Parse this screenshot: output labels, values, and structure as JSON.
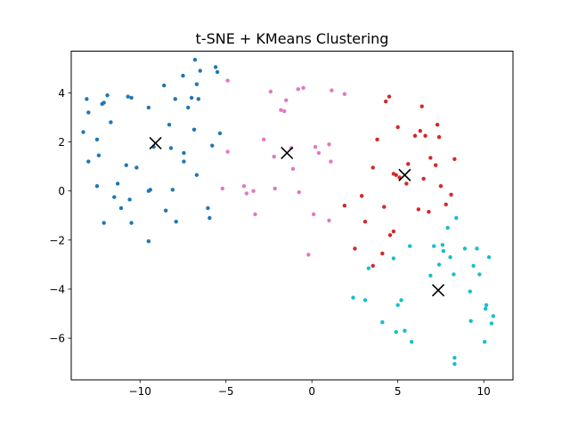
{
  "chart_data": {
    "type": "scatter",
    "title": "t-SNE + KMeans Clustering",
    "xlabel": "",
    "ylabel": "",
    "xlim": [
      -14.0,
      11.7
    ],
    "ylim": [
      -7.7,
      5.7
    ],
    "xticks": [
      -10,
      -5,
      0,
      5,
      10
    ],
    "yticks": [
      -6,
      -4,
      -2,
      0,
      2,
      4
    ],
    "xtick_labels": [
      "−10",
      "−5",
      "0",
      "5",
      "10"
    ],
    "ytick_labels": [
      "−6",
      "−4",
      "−2",
      "0",
      "2",
      "4"
    ],
    "grid": false,
    "legend": false,
    "clusters": [
      {
        "color": "#1f77b4",
        "points": [
          [
            -13.1,
            3.75
          ],
          [
            -13.0,
            3.2
          ],
          [
            -13.3,
            2.4
          ],
          [
            -13.0,
            1.2
          ],
          [
            -12.5,
            2.1
          ],
          [
            -12.4,
            1.45
          ],
          [
            -12.2,
            3.55
          ],
          [
            -12.1,
            3.6
          ],
          [
            -11.9,
            3.9
          ],
          [
            -11.7,
            2.8
          ],
          [
            -11.3,
            0.3
          ],
          [
            -11.1,
            -0.7
          ],
          [
            -10.8,
            1.05
          ],
          [
            -10.7,
            3.85
          ],
          [
            -10.5,
            3.8
          ],
          [
            -10.6,
            -0.35
          ],
          [
            -12.5,
            0.2
          ],
          [
            -11.5,
            -0.25
          ],
          [
            -12.1,
            -1.3
          ],
          [
            -10.5,
            -1.3
          ],
          [
            -10.2,
            0.95
          ],
          [
            -9.5,
            3.4
          ],
          [
            -9.5,
            0.0
          ],
          [
            -9.4,
            0.05
          ],
          [
            -9.5,
            -2.05
          ],
          [
            -9.2,
            1.8
          ],
          [
            -8.6,
            4.3
          ],
          [
            -8.3,
            2.7
          ],
          [
            -8.2,
            1.75
          ],
          [
            -8.1,
            0.05
          ],
          [
            -8.5,
            -0.8
          ],
          [
            -7.9,
            -1.25
          ],
          [
            -7.95,
            3.75
          ],
          [
            -7.5,
            4.7
          ],
          [
            -7.2,
            3.4
          ],
          [
            -7.0,
            3.8
          ],
          [
            -7.45,
            1.55
          ],
          [
            -7.45,
            1.2
          ],
          [
            -6.8,
            5.35
          ],
          [
            -6.7,
            4.35
          ],
          [
            -6.5,
            4.9
          ],
          [
            -6.85,
            2.5
          ],
          [
            -6.7,
            0.65
          ],
          [
            -6.6,
            3.75
          ],
          [
            -6.05,
            -0.7
          ],
          [
            -5.95,
            -1.1
          ],
          [
            -5.8,
            1.85
          ],
          [
            -5.6,
            5.05
          ],
          [
            -5.5,
            4.85
          ],
          [
            -5.35,
            2.35
          ]
        ]
      },
      {
        "color": "#e377c2",
        "points": [
          [
            -4.9,
            4.5
          ],
          [
            -4.9,
            1.6
          ],
          [
            -5.2,
            0.1
          ],
          [
            -3.95,
            0.2
          ],
          [
            -3.8,
            -0.1
          ],
          [
            -3.4,
            0.0
          ],
          [
            -3.3,
            -0.95
          ],
          [
            -2.8,
            2.1
          ],
          [
            -2.4,
            4.05
          ],
          [
            -2.2,
            1.4
          ],
          [
            -2.15,
            0.1
          ],
          [
            -1.8,
            3.3
          ],
          [
            -1.6,
            3.25
          ],
          [
            -1.5,
            3.7
          ],
          [
            -1.2,
            1.75
          ],
          [
            -1.1,
            0.9
          ],
          [
            -0.8,
            4.15
          ],
          [
            -0.75,
            -0.05
          ],
          [
            -0.5,
            4.2
          ],
          [
            -0.2,
            -2.6
          ],
          [
            0.1,
            -0.95
          ],
          [
            0.2,
            1.8
          ],
          [
            0.4,
            1.55
          ],
          [
            1.0,
            1.9
          ],
          [
            1.0,
            -1.2
          ],
          [
            1.1,
            1.2
          ],
          [
            1.15,
            4.1
          ],
          [
            1.9,
            3.95
          ]
        ]
      },
      {
        "color": "#d62728",
        "points": [
          [
            1.9,
            -0.6
          ],
          [
            2.5,
            -2.35
          ],
          [
            2.9,
            -0.2
          ],
          [
            3.1,
            -1.25
          ],
          [
            3.55,
            -3.05
          ],
          [
            3.55,
            0.95
          ],
          [
            3.8,
            2.1
          ],
          [
            4.2,
            -0.65
          ],
          [
            4.3,
            3.65
          ],
          [
            4.5,
            3.85
          ],
          [
            4.55,
            -1.8
          ],
          [
            4.75,
            -1.65
          ],
          [
            4.75,
            0.7
          ],
          [
            4.9,
            0.65
          ],
          [
            5.0,
            2.6
          ],
          [
            5.1,
            0.55
          ],
          [
            5.5,
            0.3
          ],
          [
            5.6,
            1.1
          ],
          [
            6.0,
            2.25
          ],
          [
            6.2,
            -0.75
          ],
          [
            6.3,
            2.45
          ],
          [
            6.4,
            3.45
          ],
          [
            6.6,
            2.25
          ],
          [
            6.5,
            0.5
          ],
          [
            6.8,
            -0.85
          ],
          [
            6.9,
            1.35
          ],
          [
            7.2,
            1.05
          ],
          [
            7.3,
            2.7
          ],
          [
            7.4,
            2.2
          ],
          [
            7.5,
            0.2
          ],
          [
            7.8,
            -0.55
          ],
          [
            8.1,
            -0.15
          ],
          [
            8.3,
            1.3
          ],
          [
            4.1,
            -2.55
          ]
        ]
      },
      {
        "color": "#17becf",
        "points": [
          [
            2.4,
            -4.35
          ],
          [
            3.1,
            -4.45
          ],
          [
            3.3,
            -3.15
          ],
          [
            4.1,
            -5.35
          ],
          [
            4.75,
            -2.75
          ],
          [
            4.9,
            -5.75
          ],
          [
            5.0,
            -4.65
          ],
          [
            5.2,
            -4.45
          ],
          [
            5.4,
            -5.7
          ],
          [
            5.7,
            -2.25
          ],
          [
            5.8,
            -6.15
          ],
          [
            6.9,
            -3.45
          ],
          [
            7.1,
            -2.25
          ],
          [
            7.4,
            -3.0
          ],
          [
            7.6,
            -2.2
          ],
          [
            7.65,
            -2.45
          ],
          [
            7.9,
            -1.5
          ],
          [
            8.05,
            -2.7
          ],
          [
            8.25,
            -3.4
          ],
          [
            8.3,
            -6.8
          ],
          [
            8.3,
            -7.05
          ],
          [
            8.4,
            -1.1
          ],
          [
            8.9,
            -2.35
          ],
          [
            9.2,
            -4.1
          ],
          [
            9.25,
            -5.3
          ],
          [
            9.4,
            -3.05
          ],
          [
            9.6,
            -2.35
          ],
          [
            9.75,
            -3.4
          ],
          [
            10.05,
            -6.15
          ],
          [
            10.1,
            -4.8
          ],
          [
            10.15,
            -4.65
          ],
          [
            10.3,
            -2.7
          ],
          [
            10.45,
            -5.4
          ],
          [
            10.55,
            -5.1
          ]
        ]
      }
    ],
    "centroids": [
      [
        -9.1,
        1.95
      ],
      [
        -1.45,
        1.55
      ],
      [
        5.4,
        0.65
      ],
      [
        7.35,
        -4.05
      ]
    ],
    "centroid_marker": "x",
    "centroid_color": "#000000"
  }
}
